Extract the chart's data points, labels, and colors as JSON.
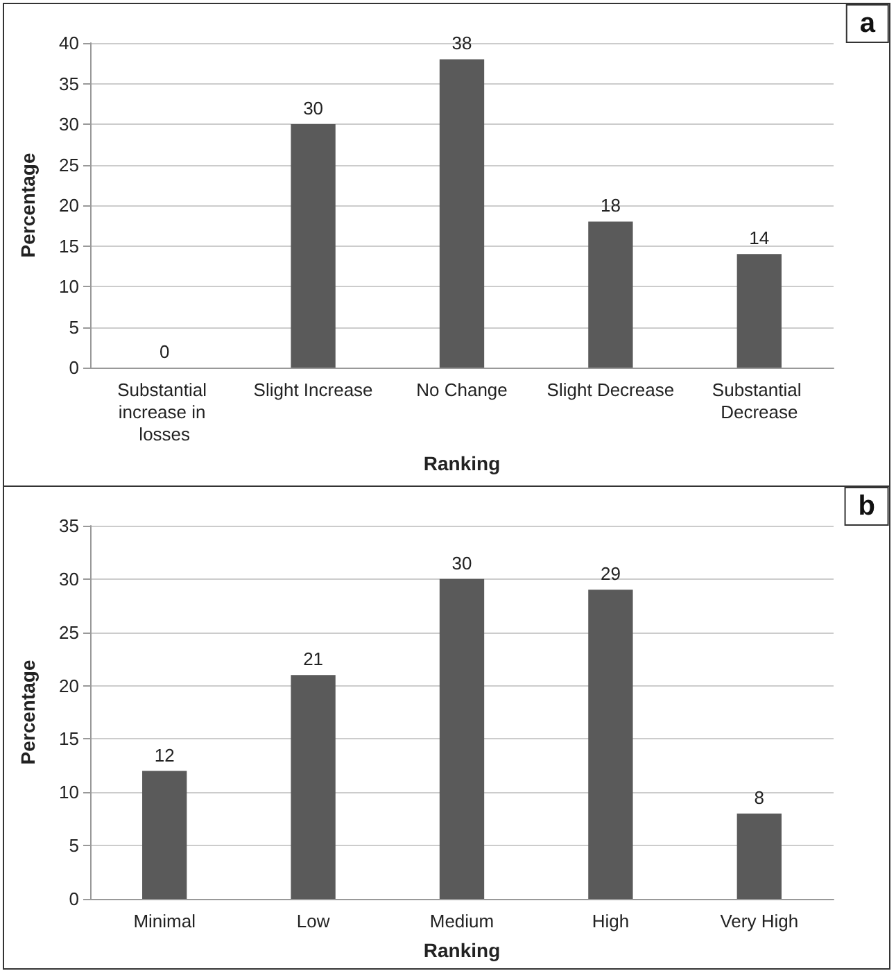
{
  "chart_data": [
    {
      "type": "bar",
      "annotations": [
        "a"
      ],
      "xlabel": "Ranking",
      "ylabel": "Percentage",
      "categories": [
        "Substantial increase in losses",
        "Slight Increase",
        "No Change",
        "Slight Decrease",
        "Substantial Decrease"
      ],
      "values": [
        0,
        30,
        38,
        18,
        14
      ],
      "color": "#5a5a5a",
      "ylim": [
        0,
        40
      ],
      "yticks": [
        0,
        5,
        10,
        15,
        20,
        25,
        30,
        35,
        40
      ],
      "grid": "y",
      "data_labels": true
    },
    {
      "type": "bar",
      "annotations": [
        "b"
      ],
      "xlabel": "Ranking",
      "ylabel": "Percentage",
      "categories": [
        "Minimal",
        "Low",
        "Medium",
        "High",
        "Very High"
      ],
      "values": [
        12,
        21,
        30,
        29,
        8
      ],
      "color": "#5a5a5a",
      "ylim": [
        0,
        35
      ],
      "yticks": [
        0,
        5,
        10,
        15,
        20,
        25,
        30,
        35
      ],
      "grid": "y",
      "data_labels": true
    }
  ]
}
